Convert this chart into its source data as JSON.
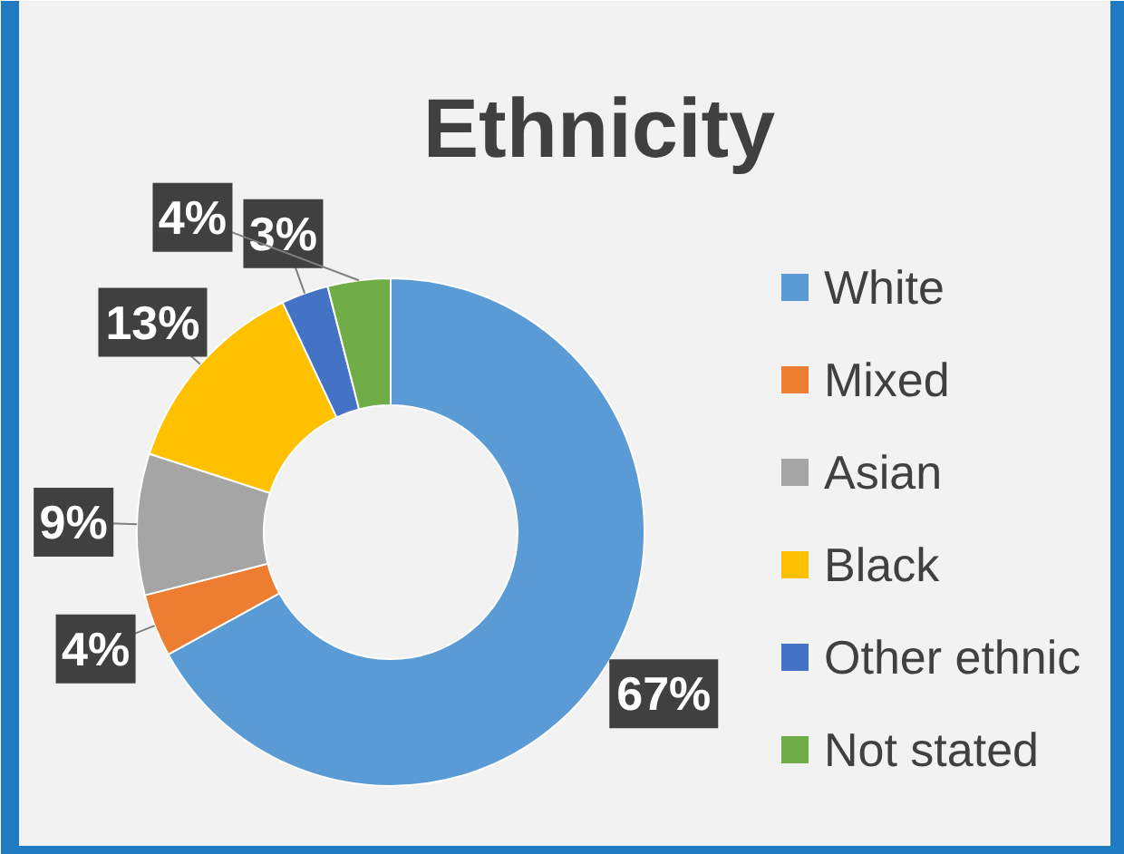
{
  "chart_data": {
    "type": "donut",
    "title": "Ethnicity",
    "categories": [
      "White",
      "Mixed",
      "Asian",
      "Black",
      "Other ethnic",
      "Not stated"
    ],
    "values": [
      67,
      4,
      9,
      13,
      3,
      4
    ],
    "colors": [
      "#5b9bd5",
      "#ed7d31",
      "#a5a5a5",
      "#ffc000",
      "#4472c4",
      "#70ad47"
    ],
    "value_labels": [
      "67%",
      "4%",
      "9%",
      "13%",
      "3%",
      "4%"
    ],
    "legend": "right"
  }
}
